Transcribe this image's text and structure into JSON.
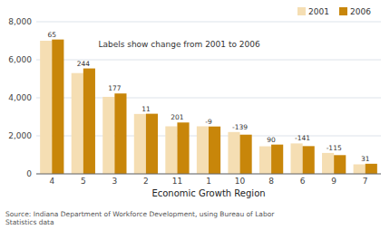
{
  "chart_data": {
    "type": "bar",
    "x_label": "Economic Growth Region",
    "categories": [
      "4",
      "5",
      "3",
      "2",
      "11",
      "1",
      "10",
      "8",
      "6",
      "9",
      "7"
    ],
    "series": [
      {
        "name": "2001",
        "color": "#f5deb3",
        "values": [
          7000,
          5300,
          4050,
          3150,
          2500,
          2500,
          2200,
          1450,
          1600,
          1100,
          500
        ]
      },
      {
        "name": "2006",
        "color": "#c8860a",
        "values": [
          7065,
          5544,
          4227,
          3161,
          2701,
          2491,
          2061,
          1540,
          1459,
          985,
          531
        ]
      }
    ],
    "changes": [
      65,
      244,
      177,
      11,
      201,
      -9,
      -139,
      90,
      -141,
      -115,
      31
    ],
    "ylim": [
      0,
      8000
    ],
    "yticks": [
      0,
      {
        "value": 2000,
        "label": "2,000"
      },
      {
        "value": 4000,
        "label": "4,000"
      },
      {
        "value": 6000,
        "label": "6,000"
      },
      {
        "value": 8000,
        "label": "8,000"
      }
    ],
    "grid": true,
    "legend": "upper right",
    "annotations": [
      "Labels show change from 2001 to 2006",
      "Source:  Indiana Department of Workforce Development, using Bureau of Labor\nStatistics data"
    ]
  }
}
